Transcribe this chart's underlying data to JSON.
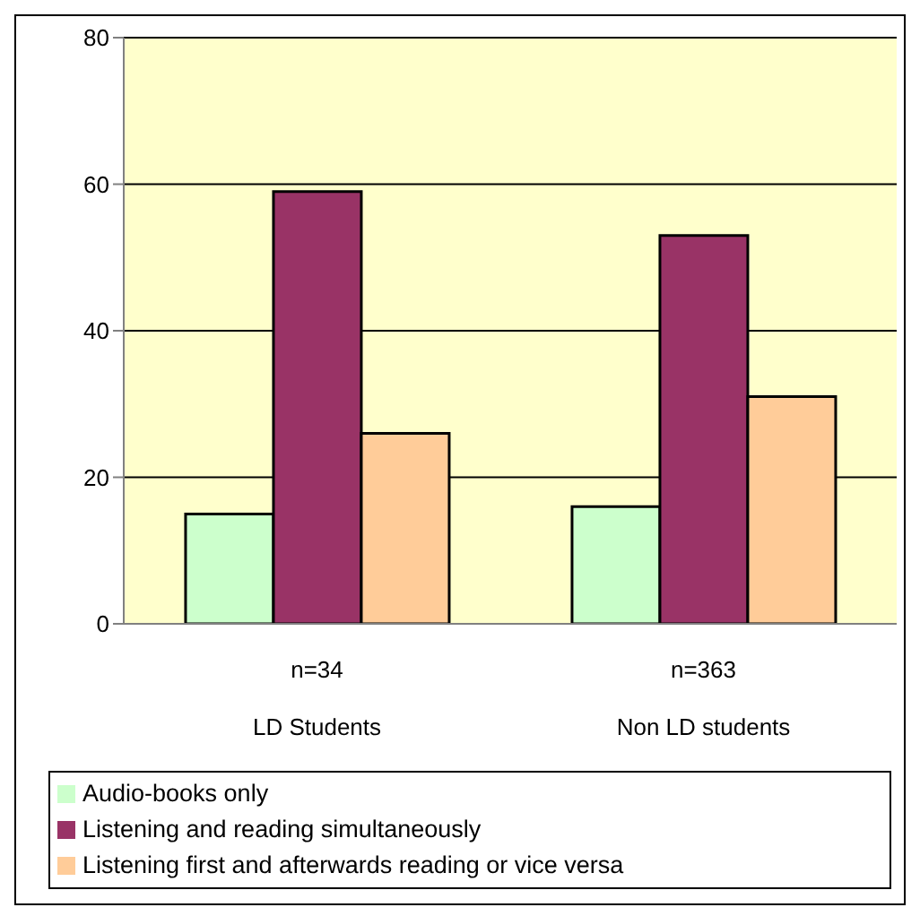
{
  "chart_data": {
    "type": "bar",
    "categories": [
      "LD Students",
      "Non LD students"
    ],
    "annotations": [
      "n=34",
      "n=363"
    ],
    "series": [
      {
        "name": "Audio-books only",
        "color": "#ccffcc",
        "values": [
          15,
          16
        ]
      },
      {
        "name": "Listening and reading simultaneously",
        "color": "#993366",
        "values": [
          59,
          53
        ]
      },
      {
        "name": "Listening first and afterwards reading or vice versa",
        "color": "#ffcc99",
        "values": [
          26,
          31
        ]
      }
    ],
    "ylim": [
      0,
      80
    ],
    "yticks": [
      0,
      20,
      40,
      60,
      80
    ],
    "grid": "y",
    "legend": "bottom"
  }
}
